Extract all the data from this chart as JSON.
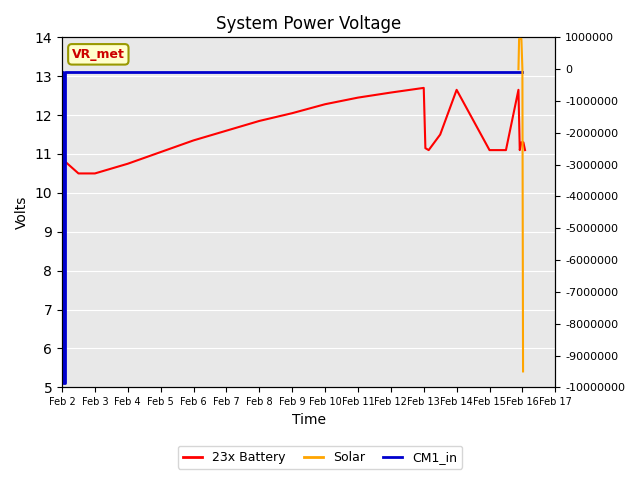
{
  "title": "System Power Voltage",
  "xlabel": "Time",
  "ylabel": "Volts",
  "ylim_left": [
    5.0,
    14.0
  ],
  "ylim_right": [
    -10000000,
    1000000
  ],
  "yticks_left": [
    5.0,
    6.0,
    7.0,
    8.0,
    9.0,
    10.0,
    11.0,
    12.0,
    13.0,
    14.0
  ],
  "yticks_right": [
    1000000,
    0,
    -1000000,
    -2000000,
    -3000000,
    -4000000,
    -5000000,
    -6000000,
    -7000000,
    -8000000,
    -9000000,
    -10000000
  ],
  "xlim": [
    2,
    17
  ],
  "xtick_positions": [
    2,
    3,
    4,
    5,
    6,
    7,
    8,
    9,
    10,
    11,
    12,
    13,
    14,
    15,
    16,
    17
  ],
  "xtick_labels": [
    "Feb 2",
    "Feb 3",
    "Feb 4",
    "Feb 5",
    "Feb 6",
    "Feb 7",
    "Feb 8",
    "Feb 9",
    "Feb 10",
    "Feb 11",
    "Feb 12",
    "Feb 13",
    "Feb 14",
    "Feb 15",
    "Feb 16",
    "Feb 17"
  ],
  "plot_bg": "#e8e8e8",
  "fig_bg": "#ffffff",
  "legend_labels": [
    "23x Battery",
    "Solar",
    "CM1_in"
  ],
  "legend_colors": [
    "#ff0000",
    "#ffa500",
    "#0000cd"
  ],
  "annotation_text": "VR_met",
  "battery_x": [
    2.0,
    2.02,
    2.05,
    2.1,
    2.5,
    3.0,
    4.0,
    5.0,
    6.0,
    7.0,
    8.0,
    9.0,
    10.0,
    11.0,
    12.0,
    13.0,
    13.05,
    13.15,
    13.5,
    14.0,
    15.0,
    15.5,
    15.88,
    15.92,
    15.97,
    16.03,
    16.08
  ],
  "battery_y": [
    10.7,
    13.1,
    11.8,
    10.8,
    10.5,
    10.5,
    10.75,
    11.05,
    11.35,
    11.6,
    11.85,
    12.05,
    12.28,
    12.45,
    12.58,
    12.7,
    11.15,
    11.1,
    11.5,
    12.65,
    11.1,
    11.1,
    12.65,
    11.1,
    11.3,
    11.3,
    11.1
  ],
  "solar_x": [
    15.88,
    15.9,
    15.92,
    15.97,
    16.0,
    16.02
  ],
  "solar_y": [
    13.05,
    950000,
    950000,
    950000,
    13.0,
    -9500000
  ],
  "cm1_x": [
    2.0,
    2.0,
    2.04,
    2.04,
    2.08,
    2.08,
    16.0
  ],
  "cm1_y": [
    13.1,
    13.1,
    13.1,
    5.1,
    5.1,
    13.1,
    13.1
  ]
}
